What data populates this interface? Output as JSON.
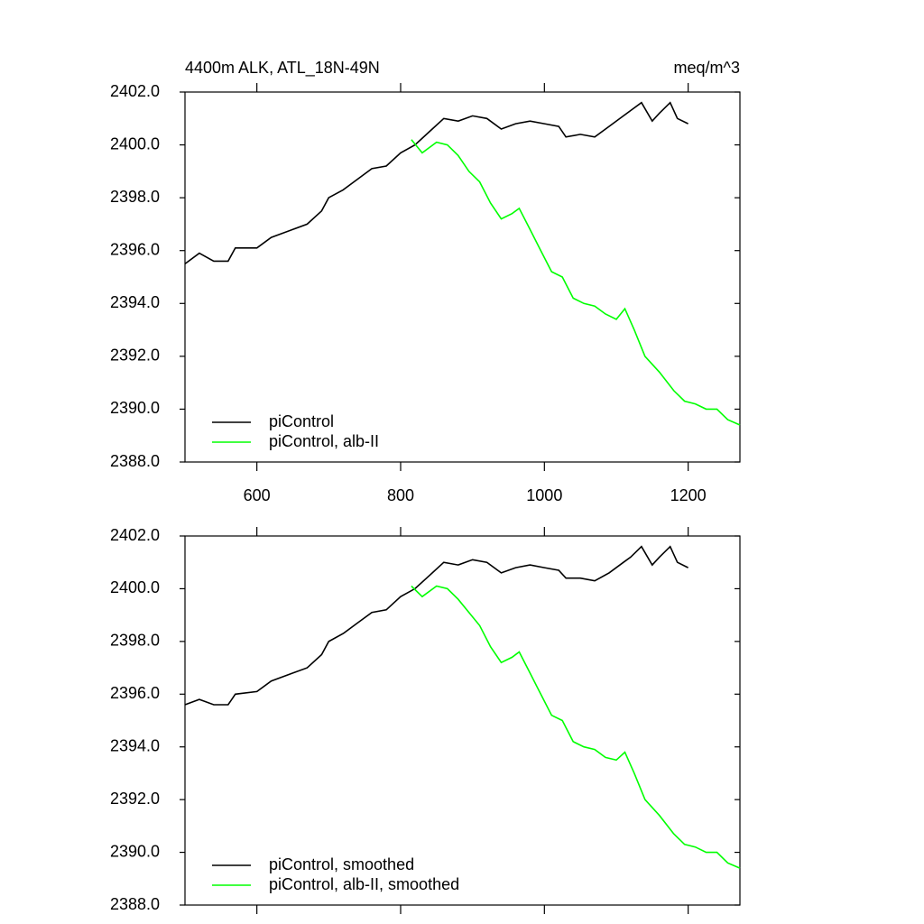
{
  "chart_data": [
    {
      "type": "line",
      "title": "4400m ALK, ATL_18N-49N",
      "units": "meq/m^3",
      "xlim": [
        500,
        1272
      ],
      "ylim": [
        2388,
        2402
      ],
      "xticks": [
        600,
        800,
        1000,
        1200
      ],
      "show_xtick_labels": true,
      "yticks": [
        {
          "value": 2388,
          "label": "2388.0"
        },
        {
          "value": 2390,
          "label": "2390.0"
        },
        {
          "value": 2392,
          "label": "2392.0"
        },
        {
          "value": 2394,
          "label": "2394.0"
        },
        {
          "value": 2396,
          "label": "2396.0"
        },
        {
          "value": 2398,
          "label": "2398.0"
        },
        {
          "value": 2400,
          "label": "2400.0"
        },
        {
          "value": 2402,
          "label": "2402.0"
        }
      ],
      "legend": "lower left",
      "series": [
        {
          "name": "piControl",
          "color": "#000000",
          "x": [
            500,
            520,
            540,
            560,
            570,
            600,
            620,
            650,
            670,
            690,
            700,
            720,
            740,
            760,
            780,
            800,
            820,
            840,
            860,
            880,
            900,
            920,
            940,
            960,
            980,
            1000,
            1020,
            1030,
            1050,
            1070,
            1090,
            1110,
            1120,
            1135,
            1150,
            1160,
            1175,
            1185,
            1200
          ],
          "values": [
            2395.5,
            2395.9,
            2395.6,
            2395.6,
            2396.1,
            2396.1,
            2396.5,
            2396.8,
            2397.0,
            2397.5,
            2398.0,
            2398.3,
            2398.7,
            2399.1,
            2399.2,
            2399.7,
            2400.0,
            2400.5,
            2401.0,
            2400.9,
            2401.1,
            2401.0,
            2400.6,
            2400.8,
            2400.9,
            2400.8,
            2400.7,
            2400.3,
            2400.4,
            2400.3,
            2400.7,
            2401.1,
            2401.3,
            2401.6,
            2400.9,
            2401.2,
            2401.6,
            2401.0,
            2400.8
          ]
        },
        {
          "name": "piControl, alb-II",
          "color": "#00ff00",
          "x": [
            815,
            830,
            850,
            865,
            880,
            895,
            910,
            925,
            940,
            955,
            965,
            980,
            995,
            1010,
            1025,
            1040,
            1055,
            1070,
            1085,
            1100,
            1112,
            1125,
            1140,
            1160,
            1180,
            1195,
            1210,
            1225,
            1240,
            1255,
            1272
          ],
          "values": [
            2400.2,
            2399.7,
            2400.1,
            2400.0,
            2399.6,
            2399.0,
            2398.6,
            2397.8,
            2397.2,
            2397.4,
            2397.6,
            2396.8,
            2396.0,
            2395.2,
            2395.0,
            2394.2,
            2394.0,
            2393.9,
            2393.6,
            2393.4,
            2393.8,
            2393.0,
            2392.0,
            2391.4,
            2390.7,
            2390.3,
            2390.2,
            2390.0,
            2390.0,
            2389.6,
            2389.4
          ]
        }
      ]
    },
    {
      "type": "line",
      "xlim": [
        500,
        1272
      ],
      "ylim": [
        2388,
        2402
      ],
      "xticks": [
        600,
        800,
        1000,
        1200
      ],
      "show_xtick_labels": false,
      "yticks": [
        {
          "value": 2388,
          "label": "2388.0"
        },
        {
          "value": 2390,
          "label": "2390.0"
        },
        {
          "value": 2392,
          "label": "2392.0"
        },
        {
          "value": 2394,
          "label": "2394.0"
        },
        {
          "value": 2396,
          "label": "2396.0"
        },
        {
          "value": 2398,
          "label": "2398.0"
        },
        {
          "value": 2400,
          "label": "2400.0"
        },
        {
          "value": 2402,
          "label": "2402.0"
        }
      ],
      "legend": "lower left",
      "series": [
        {
          "name": "piControl, smoothed",
          "color": "#000000",
          "x": [
            500,
            520,
            540,
            560,
            570,
            600,
            620,
            650,
            670,
            690,
            700,
            720,
            740,
            760,
            780,
            800,
            820,
            840,
            860,
            880,
            900,
            920,
            940,
            960,
            980,
            1000,
            1020,
            1030,
            1050,
            1070,
            1090,
            1110,
            1120,
            1135,
            1150,
            1160,
            1175,
            1185,
            1200
          ],
          "values": [
            2395.6,
            2395.8,
            2395.6,
            2395.6,
            2396.0,
            2396.1,
            2396.5,
            2396.8,
            2397.0,
            2397.5,
            2398.0,
            2398.3,
            2398.7,
            2399.1,
            2399.2,
            2399.7,
            2400.0,
            2400.5,
            2401.0,
            2400.9,
            2401.1,
            2401.0,
            2400.6,
            2400.8,
            2400.9,
            2400.8,
            2400.7,
            2400.4,
            2400.4,
            2400.3,
            2400.6,
            2401.0,
            2401.2,
            2401.6,
            2400.9,
            2401.2,
            2401.6,
            2401.0,
            2400.8
          ]
        },
        {
          "name": "piControl, alb-II, smoothed",
          "color": "#00ff00",
          "x": [
            815,
            830,
            850,
            865,
            880,
            895,
            910,
            925,
            940,
            955,
            965,
            980,
            995,
            1010,
            1025,
            1040,
            1055,
            1070,
            1085,
            1100,
            1112,
            1125,
            1140,
            1160,
            1180,
            1195,
            1210,
            1225,
            1240,
            1255,
            1272
          ],
          "values": [
            2400.1,
            2399.7,
            2400.1,
            2400.0,
            2399.6,
            2399.1,
            2398.6,
            2397.8,
            2397.2,
            2397.4,
            2397.6,
            2396.8,
            2396.0,
            2395.2,
            2395.0,
            2394.2,
            2394.0,
            2393.9,
            2393.6,
            2393.5,
            2393.8,
            2393.0,
            2392.0,
            2391.4,
            2390.7,
            2390.3,
            2390.2,
            2390.0,
            2390.0,
            2389.6,
            2389.4
          ]
        }
      ]
    }
  ]
}
